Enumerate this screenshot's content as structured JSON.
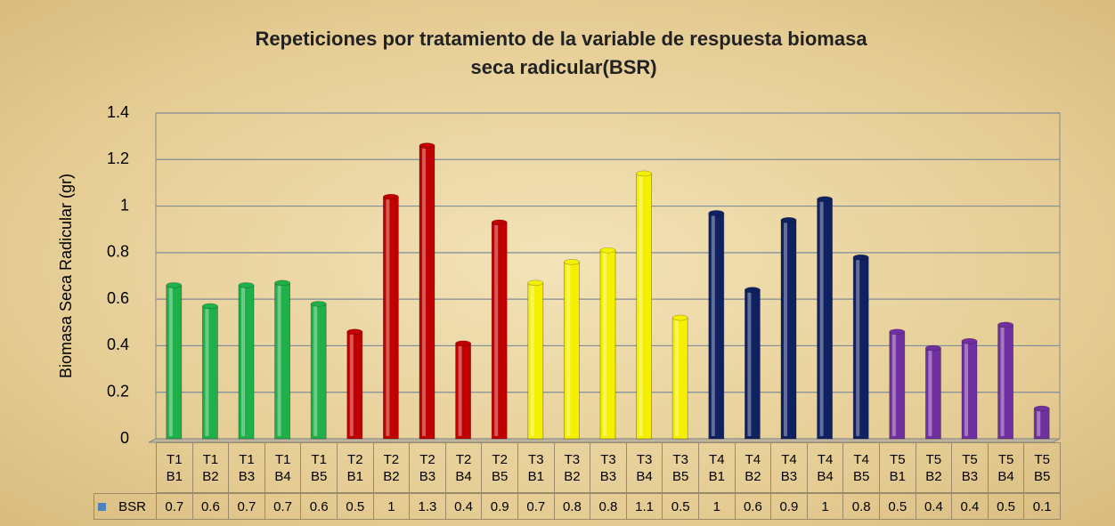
{
  "chart_data": {
    "type": "bar",
    "title": "Repeticiones por tratamiento de la variable de respuesta biomasa seca radicular(BSR)",
    "ylabel": "Biomasa Seca Radicular (gr)",
    "categories": [
      "T1 B1",
      "T1 B2",
      "T1 B3",
      "T1 B4",
      "T1 B5",
      "T2 B1",
      "T2 B2",
      "T2 B3",
      "T2 B4",
      "T2 B5",
      "T3 B1",
      "T3 B2",
      "T3 B3",
      "T3 B4",
      "T3 B5",
      "T4 B1",
      "T4 B2",
      "T4 B3",
      "T4 B4",
      "T4 B5",
      "T5 B1",
      "T5 B2",
      "T5 B3",
      "T5 B4",
      "T5 B5"
    ],
    "series": [
      {
        "name": "BSR",
        "color": "#4f81bd",
        "colors": [
          "#1fb04a",
          "#1fb04a",
          "#1fb04a",
          "#1fb04a",
          "#1fb04a",
          "#c00000",
          "#c00000",
          "#c00000",
          "#c00000",
          "#c00000",
          "#f5f000",
          "#f5f000",
          "#f5f000",
          "#f5f000",
          "#f5f000",
          "#0f2160",
          "#0f2160",
          "#0f2160",
          "#0f2160",
          "#0f2160",
          "#7030a0",
          "#7030a0",
          "#7030a0",
          "#7030a0",
          "#7030a0"
        ],
        "values": [
          0.66,
          0.57,
          0.66,
          0.67,
          0.58,
          0.46,
          1.04,
          1.26,
          0.41,
          0.93,
          0.67,
          0.76,
          0.81,
          1.14,
          0.52,
          0.97,
          0.64,
          0.94,
          1.03,
          0.78,
          0.46,
          0.39,
          0.42,
          0.49,
          0.13
        ],
        "value_labels": [
          "0.7",
          "0.6",
          "0.7",
          "0.7",
          "0.6",
          "0.5",
          "1",
          "1.3",
          "0.4",
          "0.9",
          "0.7",
          "0.8",
          "0.8",
          "1.1",
          "0.5",
          "1",
          "0.6",
          "0.9",
          "1",
          "0.8",
          "0.5",
          "0.4",
          "0.4",
          "0.5",
          "0.1"
        ]
      }
    ],
    "ylim": [
      0,
      1.4
    ],
    "yticks": [
      0,
      0.2,
      0.4,
      0.6,
      0.8,
      1,
      1.2,
      1.4
    ],
    "grid": true
  }
}
